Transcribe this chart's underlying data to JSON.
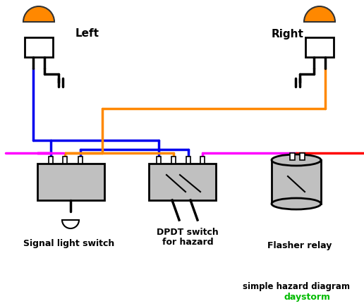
{
  "bg_color": "#ffffff",
  "title_text": "simple hazard diagram",
  "title_color": "#000000",
  "subtitle_text": "daystorm",
  "subtitle_color": "#00bb00",
  "left_label": "Left",
  "right_label": "Right",
  "sw1_label": "Signal light switch",
  "sw2_label1": "DPDT switch",
  "sw2_label2": "for hazard",
  "relay_label": "Flasher relay",
  "led_orange": "#ff8800",
  "box_color": "#c0c0c0",
  "wire_blue": "#0000ee",
  "wire_orange": "#ff8800",
  "wire_magenta": "#ff00ff",
  "wire_red": "#ff0000",
  "wire_black": "#000000",
  "lw": 2.5
}
